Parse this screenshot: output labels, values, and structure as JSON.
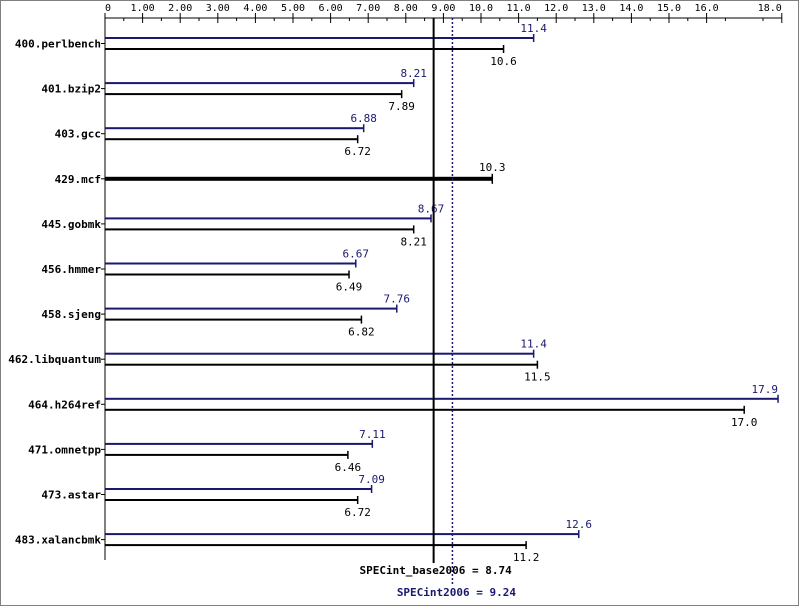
{
  "chart_data": {
    "type": "bar",
    "orientation": "horizontal",
    "categories": [
      "400.perlbench",
      "401.bzip2",
      "403.gcc",
      "429.mcf",
      "445.gobmk",
      "456.hmmer",
      "458.sjeng",
      "462.libquantum",
      "464.h264ref",
      "471.omnetpp",
      "473.astar",
      "483.xalancbmk"
    ],
    "x_ticks": [
      "0",
      "1.00",
      "2.00",
      "3.00",
      "4.00",
      "5.00",
      "6.00",
      "7.00",
      "8.00",
      "9.00",
      "10.0",
      "11.0",
      "12.0",
      "13.0",
      "14.0",
      "15.0",
      "16.0",
      "18.0"
    ],
    "x_tick_values": [
      0,
      1,
      2,
      3,
      4,
      5,
      6,
      7,
      8,
      9,
      10,
      11,
      12,
      13,
      14,
      15,
      16,
      18
    ],
    "xlim": [
      0,
      18
    ],
    "series": [
      {
        "name": "",
        "color": "#191970",
        "values": [
          11.4,
          8.21,
          6.88,
          null,
          8.67,
          6.67,
          7.76,
          11.4,
          17.9,
          7.11,
          7.09,
          12.6
        ],
        "labels": [
          "11.4",
          "8.21",
          "6.88",
          "",
          "8.67",
          "6.67",
          "7.76",
          "11.4",
          "17.9",
          "7.11",
          "7.09",
          "12.6"
        ]
      },
      {
        "name": "",
        "color": "#000000",
        "values": [
          10.6,
          7.89,
          6.72,
          10.3,
          8.21,
          6.49,
          6.82,
          11.5,
          17.0,
          6.46,
          6.72,
          11.2
        ],
        "labels": [
          "10.6",
          "7.89",
          "6.72",
          "10.3",
          "8.21",
          "6.49",
          "6.82",
          "11.5",
          "17.0",
          "6.46",
          "6.72",
          "11.2"
        ]
      }
    ],
    "reference_lines": [
      {
        "label": "SPECint_base2006 = 8.74",
        "value": 8.74,
        "style": "solid",
        "color": "#000000"
      },
      {
        "label": "SPECint2006 = 9.24",
        "value": 9.24,
        "style": "dotted",
        "color": "#191970"
      }
    ],
    "grid": false,
    "legend": "none"
  }
}
